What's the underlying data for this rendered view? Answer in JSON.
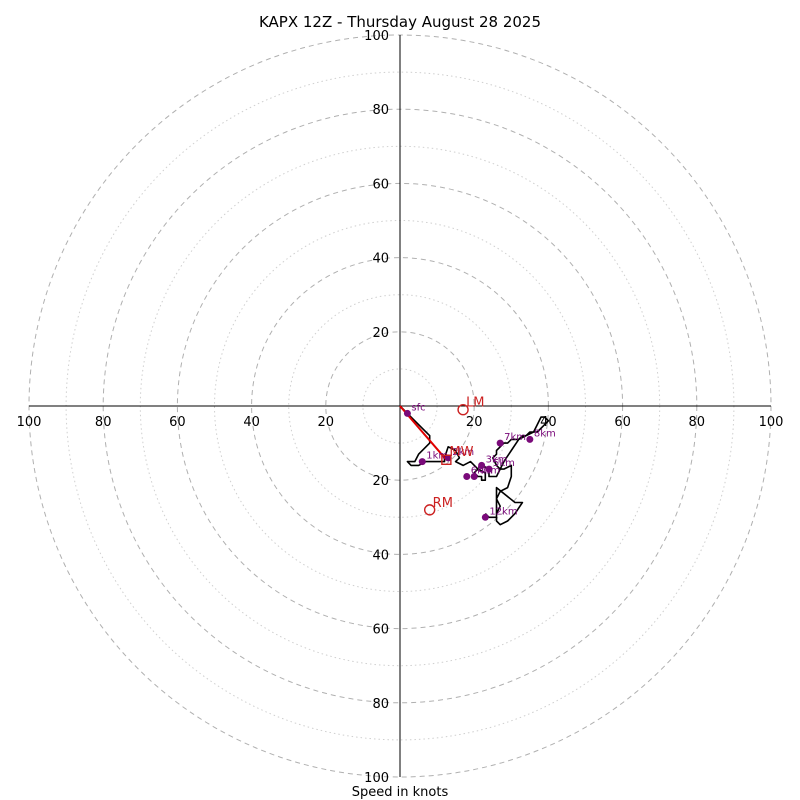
{
  "chart_data": {
    "type": "scatter",
    "title": "KAPX 12Z - Thursday August 28 2025",
    "xlabel": "Speed in knots",
    "ylabel": "",
    "xlim": [
      -100,
      100
    ],
    "ylim": [
      -100,
      100
    ],
    "rings": {
      "major": [
        20,
        40,
        60,
        80,
        100
      ],
      "minor": [
        10,
        30,
        50,
        70,
        90
      ]
    },
    "tick_labels": {
      "right": [
        "20",
        "40",
        "60",
        "80",
        "100"
      ],
      "left": [
        "100",
        "80",
        "60",
        "40",
        "20"
      ],
      "top": [
        "20",
        "40",
        "60",
        "80",
        "100"
      ],
      "bottom": [
        "20",
        "40",
        "60",
        "80",
        "100"
      ]
    },
    "hodograph": {
      "u": [
        0,
        2,
        4,
        6,
        8,
        8,
        5,
        4,
        2,
        3,
        5,
        7,
        10,
        12,
        12,
        13,
        15,
        16,
        15,
        17,
        19,
        21,
        20,
        21,
        22,
        22,
        23,
        23,
        21,
        22,
        24,
        24,
        26,
        28,
        30,
        32,
        34,
        35,
        37,
        39,
        40,
        39,
        38,
        37,
        36,
        34,
        33,
        32,
        31,
        30,
        29,
        28,
        27,
        26,
        26,
        25,
        26,
        27,
        28,
        30,
        30,
        29,
        27,
        26,
        27,
        26,
        26,
        27,
        29,
        31,
        33,
        31,
        26,
        26,
        24,
        23
      ],
      "v": [
        0,
        -2,
        -4,
        -6,
        -8,
        -10,
        -13,
        -15,
        -15,
        -16,
        -16,
        -15,
        -15,
        -15,
        -14,
        -11,
        -12,
        -14,
        -15,
        -16,
        -15,
        -17,
        -18,
        -19,
        -19,
        -20,
        -20,
        -18,
        -17,
        -16,
        -17,
        -19,
        -19,
        -15,
        -12,
        -9,
        -8,
        -7,
        -7,
        -5,
        -4,
        -3,
        -3,
        -5,
        -7,
        -8,
        -8,
        -9,
        -9,
        -9,
        -10,
        -10,
        -11,
        -12,
        -13,
        -14,
        -16,
        -17,
        -17,
        -16,
        -19,
        -22,
        -23,
        -25,
        -27,
        -29,
        -31,
        -32,
        -31,
        -29,
        -26,
        -26,
        -22,
        -30,
        -30,
        -29
      ],
      "heights": [
        {
          "label": "sfc",
          "u": 2,
          "v": -2
        },
        {
          "label": "1km",
          "u": 6,
          "v": -15
        },
        {
          "label": "2km",
          "u": 13,
          "v": -14
        },
        {
          "label": "3km",
          "u": 22,
          "v": -16
        },
        {
          "label": "4km",
          "u": 20,
          "v": -19
        },
        {
          "label": "5km",
          "u": 24,
          "v": -17
        },
        {
          "label": "6km",
          "u": 18,
          "v": -19
        },
        {
          "label": "7km",
          "u": 27,
          "v": -10
        },
        {
          "label": "8km",
          "u": 35,
          "v": -9
        },
        {
          "label": "12km",
          "u": 23,
          "v": -30
        }
      ]
    },
    "storm_motion": [
      {
        "label": "LM",
        "u": 17,
        "v": -1
      },
      {
        "label": "RM",
        "u": 8,
        "v": -28
      }
    ],
    "mean_wind": {
      "label": "MW",
      "u": 12.5,
      "v": -14.5
    },
    "shear_vector": {
      "u1": 0,
      "v1": 0,
      "u2": 12.5,
      "v2": -14.5
    },
    "colors": {
      "hodograph": "#000000",
      "heights": "#7a0a7a",
      "storm_motion": "#cc2222",
      "shear_vector": "#e00000",
      "rings": "#b0b0b0"
    },
    "grid": true
  }
}
